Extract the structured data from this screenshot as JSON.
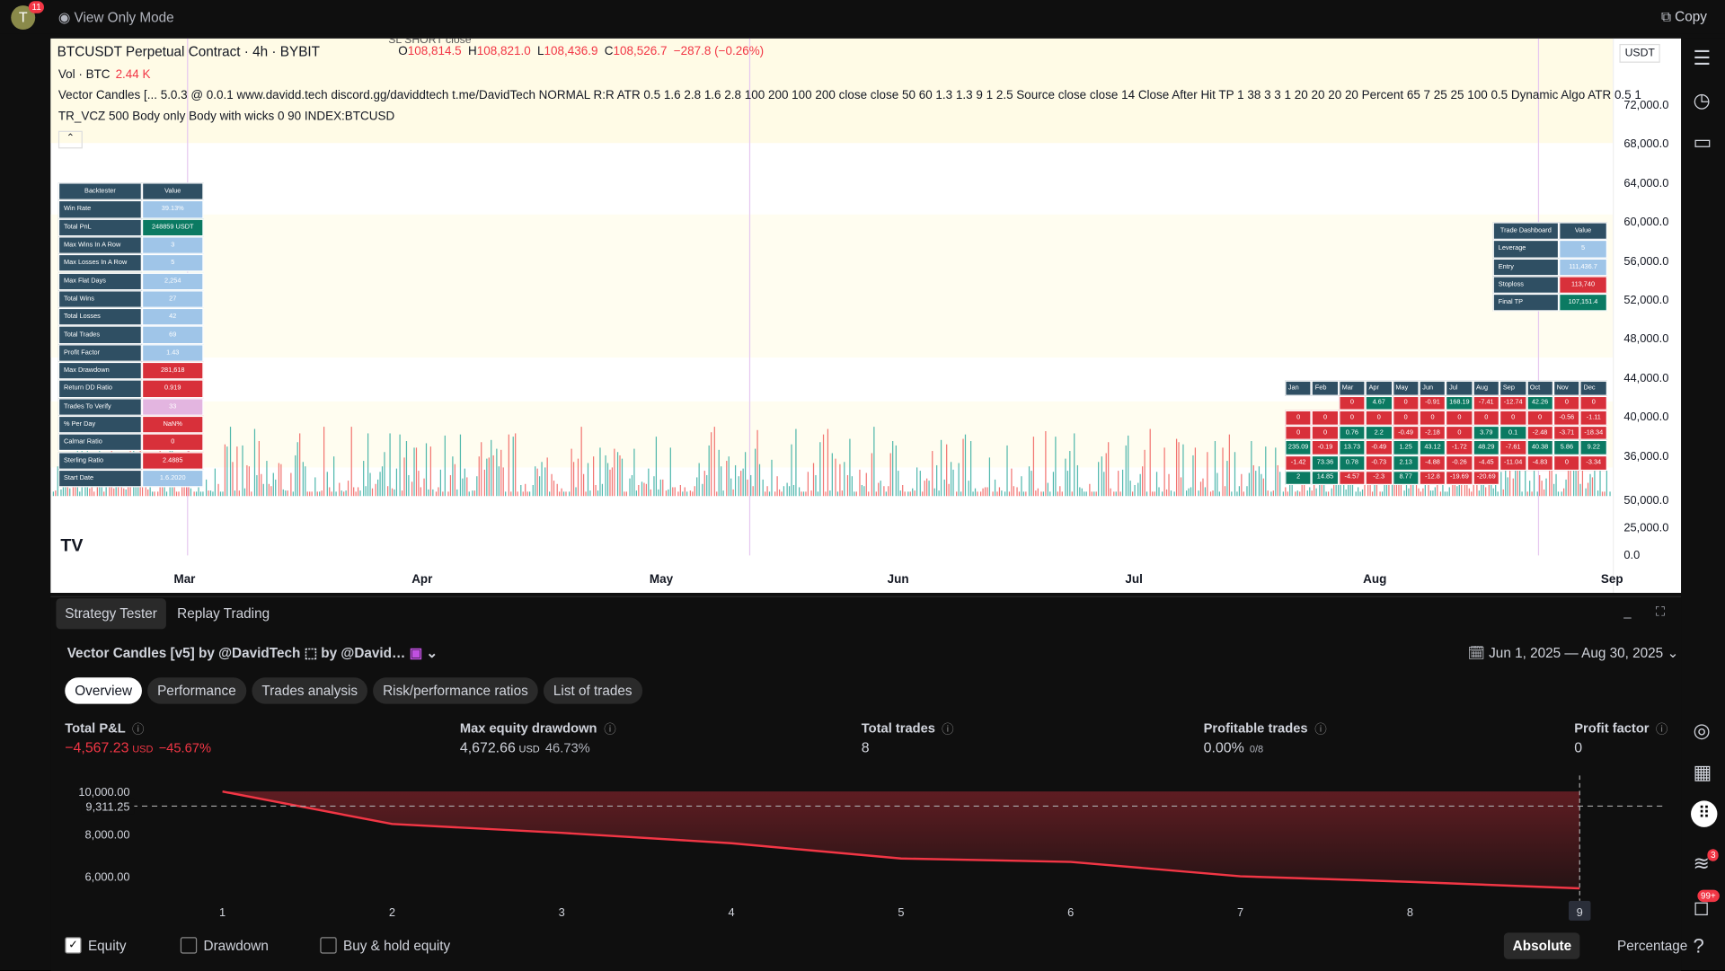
{
  "top_bar": {
    "avatar": "T",
    "badge": "11",
    "mode": "View Only Mode",
    "copy": "Copy"
  },
  "price_chart": {
    "symbol": "BTCUSDT Perpetual Contract · 4h · BYBIT",
    "ohlc": [
      [
        "O",
        "108,814.5"
      ],
      [
        "H",
        "108,821.0"
      ],
      [
        "L",
        "108,436.9"
      ],
      [
        "C",
        "108,526.7"
      ]
    ],
    "change": "−287.8 (−0.26%)",
    "volume_label": "Vol · BTC",
    "volume_value": "2.44 K",
    "indicator_line1": "Vector Candles [... 5.0.3 @ 0.0.1 www.davidd.tech discord.gg/daviddtech t.me/DavidTech NORMAL R:R ATR 0.5 1.6 2.8 1.6 2.8 100 200 100 200 close close 50 60 1.3 1.3 9 1 2.5 Source close close 14 Close After Hit TP 1 38 3 3 1 20 20 20 20 Percent 65 7 25 25 100 0.5 Dynamic Algo ATR 0.5 1",
    "indicator_line2": "TR_VCZ 500 Body only Body with wicks 0 90 INDEX:BTCUSD",
    "annotation": "SL SHORT close",
    "currency": "USDT",
    "price_ticks": [
      "72,000.0",
      "68,000.0",
      "64,000.0",
      "60,000.0",
      "56,000.0",
      "52,000.0",
      "48,000.0",
      "44,000.0",
      "40,000.0",
      "36,000.0"
    ],
    "volume_ticks": [
      "50,000.0",
      "25,000.0",
      "0.0"
    ],
    "months": [
      "Mar",
      "Apr",
      "May",
      "Jun",
      "Jul",
      "Aug",
      "Sep"
    ]
  },
  "backtester": {
    "header": [
      "Backtester",
      "Value"
    ],
    "rows": [
      {
        "label": "Win Rate",
        "value": "39.13%",
        "color": "#9fc5e8"
      },
      {
        "label": "Total PnL",
        "value": "248859 USDT",
        "color": "#0b7a62"
      },
      {
        "label": "Max Wins In A Row",
        "value": "3",
        "color": "#9fc5e8"
      },
      {
        "label": "Max Losses In A Row",
        "value": "5",
        "color": "#9fc5e8"
      },
      {
        "label": "Max Flat Days",
        "value": "2,254",
        "color": "#9fc5e8"
      },
      {
        "label": "Total Wins",
        "value": "27",
        "color": "#9fc5e8"
      },
      {
        "label": "Total Losses",
        "value": "42",
        "color": "#9fc5e8"
      },
      {
        "label": "Total Trades",
        "value": "69",
        "color": "#9fc5e8"
      },
      {
        "label": "Profit Factor",
        "value": "1.43",
        "color": "#9fc5e8"
      },
      {
        "label": "Max Drawdown",
        "value": "281,618",
        "color": "#d8303a"
      },
      {
        "label": "Return DD Ratio",
        "value": "0.919",
        "color": "#d8303a"
      },
      {
        "label": "Trades To Verify",
        "value": "33",
        "color": "#e3b5e0"
      },
      {
        "label": "% Per Day",
        "value": "NaN%",
        "color": "#d8303a"
      },
      {
        "label": "Calmar Ratio",
        "value": "0",
        "color": "#d8303a"
      },
      {
        "label": "Sterling Ratio",
        "value": "2.4885",
        "color": "#d8303a"
      },
      {
        "label": "Start Date",
        "value": "1.6.2020",
        "color": "#9fc5e8"
      }
    ]
  },
  "trade_dashboard": {
    "header": [
      "Trade Dashboard",
      "Value"
    ],
    "rows": [
      {
        "label": "Leverage",
        "value": "5",
        "color": "#9fc5e8"
      },
      {
        "label": "Entry",
        "value": "111,436.7",
        "color": "#9fc5e8"
      },
      {
        "label": "Stoploss",
        "value": "113,740",
        "color": "#d8303a"
      },
      {
        "label": "Final TP",
        "value": "107,151.4",
        "color": "#0b7a62"
      }
    ]
  },
  "monthly_table": {
    "header": [
      "Jan",
      "Feb",
      "Mar",
      "Apr",
      "May",
      "Jun",
      "Jul",
      "Aug",
      "Sep",
      "Oct",
      "Nov",
      "Dec"
    ],
    "rows": [
      [
        null,
        null,
        "0",
        "4.67",
        "0",
        "-0.91",
        "168.19",
        "-7.41",
        "-12.74",
        "42.26",
        "0",
        "0"
      ],
      [
        "0",
        "0",
        "0",
        "0",
        "0",
        "0",
        "0",
        "0",
        "0",
        "0",
        "-0.56",
        "-1.11"
      ],
      [
        "0",
        "0",
        "0.76",
        "2.2",
        "-0.49",
        "-2.18",
        "0",
        "3.79",
        "0.1",
        "-2.48",
        "-3.71",
        "-18.34"
      ],
      [
        "235.09",
        "-0.19",
        "13.73",
        "-0.49",
        "1.25",
        "43.12",
        "-1.72",
        "48.29",
        "-7.61",
        "40.38",
        "5.86",
        "9.22"
      ],
      [
        "-1.42",
        "73.36",
        "0.78",
        "-0.73",
        "2.13",
        "-4.88",
        "-0.26",
        "-4.45",
        "-11.04",
        "-4.83",
        "0",
        "-3.34"
      ],
      [
        "2",
        "14.85",
        "-4.57",
        "-2.3",
        "8.77",
        "-12.8",
        "-19.69",
        "-20.69",
        null,
        null,
        null,
        null
      ]
    ]
  },
  "panel": {
    "tabs": [
      "Strategy Tester",
      "Replay Trading"
    ],
    "strategy": "Vector Candles [v5] by @DavidTech ⬚ by @David…",
    "date_range": "Jun 1, 2025 — Aug 30, 2025",
    "sub_tabs": [
      "Overview",
      "Performance",
      "Trades analysis",
      "Risk/performance ratios",
      "List of trades"
    ],
    "metrics": [
      {
        "title": "Total P&L",
        "value": "−4,567.23",
        "unit": "USD",
        "extra": "−45.67%"
      },
      {
        "title": "Max equity drawdown",
        "value": "4,672.66",
        "unit": "USD",
        "extra": "46.73%"
      },
      {
        "title": "Total trades",
        "value": "8"
      },
      {
        "title": "Profitable trades",
        "value": "0.00%",
        "extra": "0/8"
      },
      {
        "title": "Profit factor",
        "value": "0"
      }
    ],
    "toggles": [
      "Equity",
      "Drawdown",
      "Buy & hold equity"
    ],
    "modes": [
      "Absolute",
      "Percentage"
    ]
  },
  "sidebar": {
    "badges": [
      "3",
      "99+"
    ]
  },
  "chart_data": {
    "type": "line",
    "x": [
      1,
      2,
      3,
      4,
      5,
      6,
      7,
      8,
      9
    ],
    "series": [
      {
        "name": "Equity",
        "color": "#f23645",
        "values": [
          10000,
          8470,
          8050,
          7560,
          6840,
          6680,
          6000,
          5740,
          5432.77
        ]
      }
    ],
    "xlim": [
      0,
      9.5
    ],
    "xticks": [
      1,
      2,
      3,
      4,
      5,
      6,
      7,
      8,
      9
    ],
    "ylim": [
      5000,
      10500
    ],
    "yticks": [
      {
        "value": 6000,
        "label": "6,000.00"
      },
      {
        "value": 8000,
        "label": "8,000.00"
      },
      {
        "value": 10000,
        "label": "10,000.00"
      }
    ],
    "reference_line": {
      "value": 9311.25,
      "label": "9,311.25"
    }
  }
}
